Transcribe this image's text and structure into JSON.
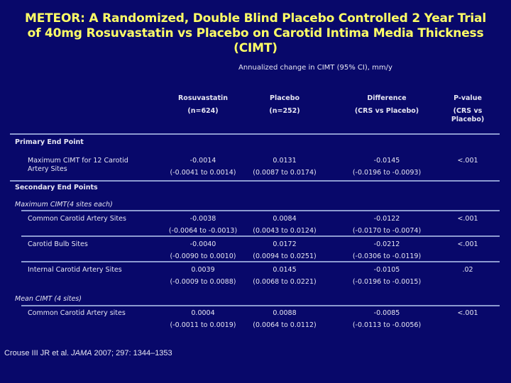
{
  "title": [
    "METEOR: A Randomized, Double Blind Placebo Controlled 2 Year Trial",
    "of 40mg Rosuvastatin vs Placebo on Carotid Intima Media Thickness",
    "(CIMT)"
  ],
  "subtitle": "Annualized change in CIMT (95% CI), mm/y",
  "columns": [
    {
      "label": "Rosuvastatin",
      "sub": "(n=624)"
    },
    {
      "label": "Placebo",
      "sub": "(n=252)"
    },
    {
      "label": "Difference",
      "sub": "(CRS vs Placebo)"
    },
    {
      "label": "P-value",
      "sub": "(CRS vs\nPlacebo)"
    }
  ],
  "sections": {
    "primary": "Primary End Point",
    "secondary": "Secondary End Points",
    "max_cimt": "Maximum CIMT(4 sites each)",
    "mean_cimt": "Mean CIMT (4 sites)"
  },
  "rows": [
    {
      "label": "Maximum CIMT for 12 Carotid\nArtery Sites",
      "rosu": "-0.0014",
      "rosu_ci": "(-0.0041 to 0.0014)",
      "plac": "0.0131",
      "plac_ci": "(0.0087 to 0.0174)",
      "diff": "-0.0145",
      "diff_ci": "(-0.0196 to -0.0093)",
      "p": "<.001"
    },
    {
      "label": "Common Carotid Artery Sites",
      "rosu": "-0.0038",
      "rosu_ci": "(-0.0064 to -0.0013)",
      "plac": "0.0084",
      "plac_ci": "(0.0043 to 0.0124)",
      "diff": "-0.0122",
      "diff_ci": "(-0.0170 to -0.0074)",
      "p": "<.001"
    },
    {
      "label": "Carotid Bulb Sites",
      "rosu": "-0.0040",
      "rosu_ci": "(-0.0090 to 0.0010)",
      "plac": "0.0172",
      "plac_ci": "(0.0094 to 0.0251)",
      "diff": "-0.0212",
      "diff_ci": "(-0.0306 to -0.0119)",
      "p": "<.001"
    },
    {
      "label": "Internal Carotid Artery Sites",
      "rosu": "0.0039",
      "rosu_ci": "(-0.0009 to 0.0088)",
      "plac": "0.0145",
      "plac_ci": "(0.0068 to 0.0221)",
      "diff": "-0.0105",
      "diff_ci": "(-0.0196 to -0.0015)",
      "p": ".02"
    },
    {
      "label": "Common Carotid Artery sites",
      "rosu": "0.0004",
      "rosu_ci": "(-0.0011 to 0.0019)",
      "plac": "0.0088",
      "plac_ci": "(0.0064 to 0.0112)",
      "diff": "-0.0085",
      "diff_ci": "(-0.0113 to -0.0056)",
      "p": "<.001"
    }
  ],
  "citation": {
    "authors": "Crouse III JR et al. ",
    "journal": "JAMA",
    "details": " 2007; 297: 1344–1353"
  },
  "colors": {
    "background": "#08086a",
    "title": "#ffff66",
    "rule": "#8c9ad0"
  }
}
